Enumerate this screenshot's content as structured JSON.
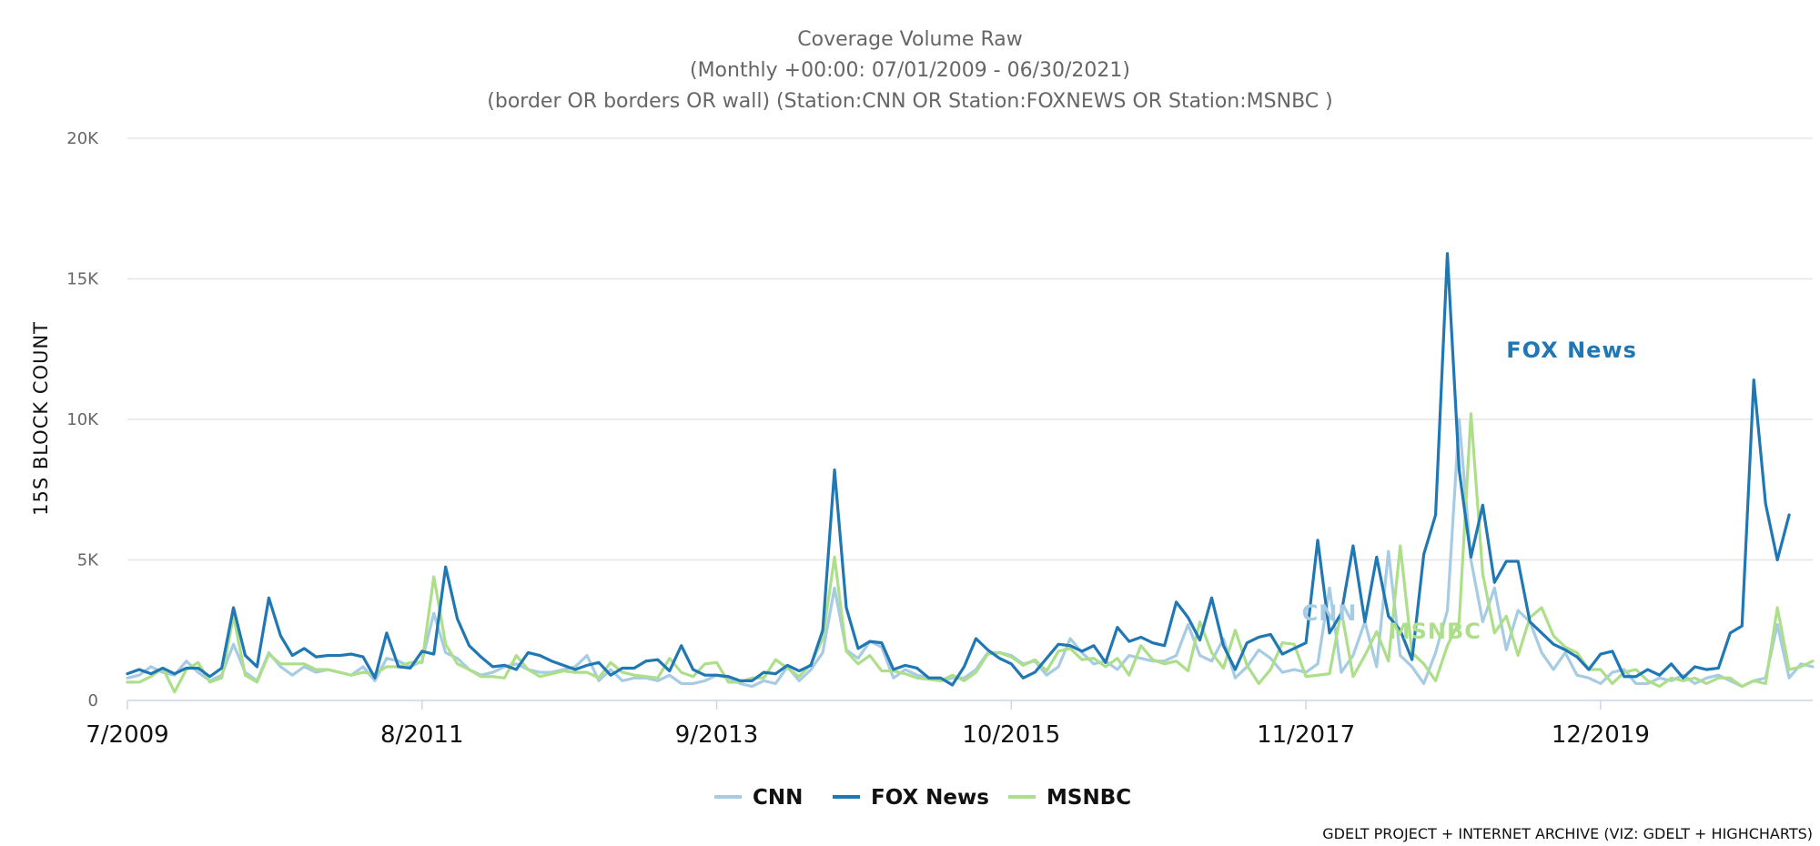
{
  "chart_data": {
    "type": "line",
    "title": "Coverage Volume Raw",
    "subtitle_lines": [
      "(Monthly +00:00: 07/01/2009 - 06/30/2021)",
      "(border OR borders OR wall) (Station:CNN OR Station:FOXNEWS OR Station:MSNBC )"
    ],
    "ylabel": "15S BLOCK COUNT",
    "ylim": [
      0,
      20000
    ],
    "yticks": [
      {
        "value": 0,
        "label": "0"
      },
      {
        "value": 5000,
        "label": "5K"
      },
      {
        "value": 10000,
        "label": "10K"
      },
      {
        "value": 15000,
        "label": "15K"
      },
      {
        "value": 20000,
        "label": "20K"
      }
    ],
    "x_start": "2009-07",
    "x_end": "2021-06",
    "xticks": [
      {
        "month_index": 0,
        "label": "7/2009"
      },
      {
        "month_index": 25,
        "label": "8/2011"
      },
      {
        "month_index": 50,
        "label": "9/2013"
      },
      {
        "month_index": 75,
        "label": "10/2015"
      },
      {
        "month_index": 100,
        "label": "11/2017"
      },
      {
        "month_index": 125,
        "label": "12/2019"
      }
    ],
    "series": [
      {
        "name": "CNN",
        "color": "#a6cbe3",
        "values": [
          800,
          900,
          1200,
          1000,
          900,
          1400,
          1000,
          700,
          900,
          2000,
          1000,
          700,
          1700,
          1200,
          900,
          1200,
          1000,
          1100,
          1000,
          900,
          1200,
          700,
          1500,
          1400,
          1200,
          1400,
          3100,
          1700,
          1500,
          1100,
          900,
          1000,
          1200,
          1300,
          1100,
          1000,
          1000,
          1100,
          1200,
          1600,
          700,
          1100,
          700,
          800,
          800,
          700,
          900,
          600,
          600,
          700,
          900,
          800,
          600,
          500,
          700,
          600,
          1200,
          700,
          1100,
          1700,
          4000,
          1800,
          1500,
          2100,
          1900,
          800,
          1100,
          900,
          800,
          700,
          800,
          800,
          1100,
          1700,
          1700,
          1600,
          1300,
          1400,
          900,
          1200,
          2200,
          1700,
          1300,
          1400,
          1100,
          1600,
          1500,
          1400,
          1400,
          1600,
          2700,
          1600,
          1400,
          2200,
          800,
          1200,
          1800,
          1500,
          1000,
          1100,
          1000,
          1300,
          4000,
          1000,
          1600,
          2800,
          1200,
          5300,
          1600,
          1200,
          600,
          1700,
          3200,
          10000,
          5000,
          2800,
          4000,
          1800,
          3200,
          2800,
          1700,
          1100,
          1700,
          900,
          800,
          600,
          1000,
          1100,
          600,
          600,
          800,
          700,
          900,
          600,
          800,
          900,
          700,
          500,
          700,
          800,
          2700,
          800,
          1300,
          1200
        ]
      },
      {
        "name": "FOX News",
        "color": "#1f77b4",
        "values": [
          950,
          1100,
          950,
          1150,
          950,
          1150,
          1150,
          850,
          1150,
          3300,
          1600,
          1200,
          3650,
          2300,
          1600,
          1850,
          1550,
          1600,
          1600,
          1650,
          1550,
          800,
          2400,
          1200,
          1150,
          1750,
          1650,
          4750,
          2900,
          1950,
          1550,
          1200,
          1250,
          1100,
          1700,
          1600,
          1400,
          1250,
          1100,
          1250,
          1350,
          900,
          1150,
          1150,
          1400,
          1450,
          1050,
          1950,
          1100,
          900,
          900,
          850,
          700,
          700,
          1000,
          950,
          1250,
          1050,
          1250,
          2500,
          8200,
          3300,
          1850,
          2100,
          2050,
          1100,
          1250,
          1150,
          800,
          800,
          550,
          1200,
          2200,
          1800,
          1500,
          1300,
          800,
          1000,
          1500,
          2000,
          1950,
          1750,
          1950,
          1350,
          2600,
          2100,
          2250,
          2050,
          1950,
          3500,
          2950,
          2150,
          3650,
          1950,
          1100,
          2050,
          2250,
          2350,
          1650,
          1850,
          2050,
          5700,
          2400,
          3100,
          5500,
          2800,
          5100,
          3000,
          2500,
          1450,
          5200,
          6600,
          15900,
          8200,
          5100,
          6950,
          4200,
          4950,
          4950,
          2800,
          2400,
          2000,
          1800,
          1550,
          1100,
          1650,
          1750,
          850,
          850,
          1100,
          900,
          1300,
          800,
          1200,
          1100,
          1150,
          2400,
          2650,
          11400,
          7000,
          5000,
          6600
        ]
      },
      {
        "name": "MSNBC",
        "color": "#addf8a",
        "values": [
          650,
          650,
          850,
          1150,
          300,
          1100,
          1350,
          650,
          800,
          3000,
          900,
          650,
          1650,
          1300,
          1300,
          1300,
          1100,
          1100,
          1000,
          900,
          1000,
          950,
          1200,
          1200,
          1350,
          1350,
          4400,
          2000,
          1300,
          1100,
          850,
          850,
          800,
          1600,
          1100,
          850,
          950,
          1050,
          1000,
          1000,
          800,
          1350,
          1000,
          900,
          850,
          800,
          1500,
          1000,
          850,
          1300,
          1350,
          650,
          650,
          800,
          800,
          1450,
          1150,
          850,
          1300,
          2200,
          5100,
          1750,
          1300,
          1600,
          1050,
          1050,
          950,
          800,
          750,
          700,
          900,
          700,
          1000,
          1650,
          1700,
          1550,
          1250,
          1450,
          1050,
          1750,
          1850,
          1450,
          1500,
          1200,
          1500,
          900,
          1950,
          1450,
          1300,
          1400,
          1050,
          2800,
          1700,
          1150,
          2500,
          1250,
          600,
          1100,
          2050,
          2000,
          850,
          900,
          950,
          3200,
          850,
          1600,
          2450,
          1400,
          5500,
          1700,
          1300,
          700,
          1950,
          2800,
          10200,
          4500,
          2400,
          3000,
          1600,
          2950,
          3300,
          2300,
          1900,
          1700,
          1100,
          1100,
          600,
          1000,
          1100,
          700,
          500,
          800,
          700,
          800,
          600,
          800,
          800,
          500,
          700,
          600,
          3300,
          1100,
          1200,
          1400
        ]
      }
    ],
    "annotations": [
      {
        "text": "CNN",
        "series": "CNN",
        "color": "#a6cbe3"
      },
      {
        "text": "FOX News",
        "series": "FOX News",
        "color": "#1f77b4"
      },
      {
        "text": "MSNBC",
        "series": "MSNBC",
        "color": "#addf8a"
      }
    ],
    "legend_position": "bottom-center",
    "grid": true,
    "credits": "GDELT PROJECT + INTERNET ARCHIVE (VIZ: GDELT + HIGHCHARTS)"
  }
}
